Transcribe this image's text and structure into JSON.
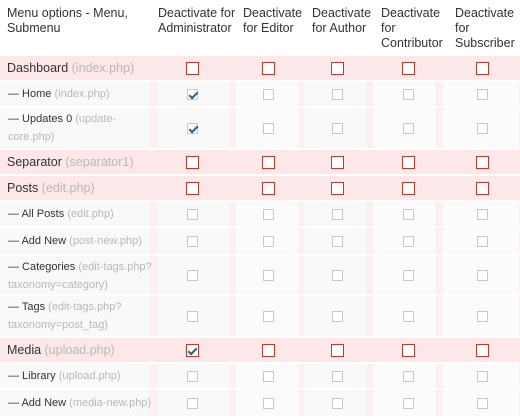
{
  "headers": {
    "col0": "Menu options - Menu, Submenu",
    "col1": "Deactivate for Administrator",
    "col2": "Deactivate for Editor",
    "col3": "Deactivate for Author",
    "col4": "Deactivate for Contributor",
    "col5": "Deactivate for Subscriber"
  },
  "rows": [
    {
      "type": "top",
      "label": "Dashboard",
      "slug": "(index.php)",
      "checked": [
        false,
        false,
        false,
        false,
        false
      ]
    },
    {
      "type": "sub",
      "label": "— Home",
      "slug": "(index.php)",
      "checked": [
        true,
        false,
        false,
        false,
        false
      ]
    },
    {
      "type": "sub",
      "label": "— Updates 0",
      "slug": "(update-core.php)",
      "checked": [
        true,
        false,
        false,
        false,
        false
      ]
    },
    {
      "type": "top",
      "label": "Separator",
      "slug": "(separator1)",
      "checked": [
        false,
        false,
        false,
        false,
        false
      ]
    },
    {
      "type": "top",
      "label": "Posts",
      "slug": "(edit.php)",
      "checked": [
        false,
        false,
        false,
        false,
        false
      ]
    },
    {
      "type": "sub",
      "label": "— All Posts",
      "slug": "(edit.php)",
      "checked": [
        false,
        false,
        false,
        false,
        false
      ]
    },
    {
      "type": "sub",
      "label": "— Add New",
      "slug": "(post-new.php)",
      "checked": [
        false,
        false,
        false,
        false,
        false
      ]
    },
    {
      "type": "sub",
      "label": "— Categories",
      "slug": "(edit-tags.php? taxonomy=category)",
      "checked": [
        false,
        false,
        false,
        false,
        false
      ]
    },
    {
      "type": "sub",
      "label": "— Tags",
      "slug": "(edit-tags.php? taxonomy=post_tag)",
      "checked": [
        false,
        false,
        false,
        false,
        false
      ]
    },
    {
      "type": "top",
      "label": "Media",
      "slug": "(upload.php)",
      "checked": [
        true,
        false,
        false,
        false,
        false
      ]
    },
    {
      "type": "sub",
      "label": "— Library",
      "slug": "(upload.php)",
      "checked": [
        false,
        false,
        false,
        false,
        false
      ]
    },
    {
      "type": "sub",
      "label": "— Add New",
      "slug": "(media-new.php)",
      "checked": [
        false,
        false,
        false,
        false,
        false
      ]
    }
  ]
}
